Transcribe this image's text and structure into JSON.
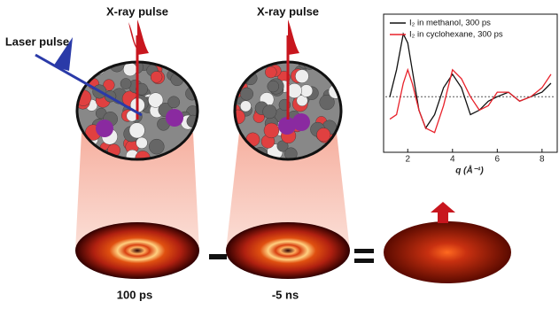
{
  "labels": {
    "xray_left": "X-ray pulse",
    "xray_right": "X-ray pulse",
    "laser": "Laser pulse",
    "time_left": "100 ps",
    "time_right": "-5 ns"
  },
  "chart_data": {
    "type": "line",
    "xlabel": "q (Å⁻¹)",
    "x": [
      1.2,
      1.5,
      1.8,
      2.0,
      2.2,
      2.5,
      2.8,
      3.2,
      3.6,
      4.0,
      4.4,
      4.8,
      5.2,
      5.6,
      6.0,
      6.5,
      7.0,
      7.5,
      8.0,
      8.4
    ],
    "series": [
      {
        "name": "I₂ in methanol, 300 ps",
        "color": "#111111",
        "values": [
          0,
          0.6,
          1.4,
          1.2,
          0.6,
          -0.3,
          -0.7,
          -0.4,
          0.2,
          0.5,
          0.2,
          -0.4,
          -0.3,
          -0.1,
          0,
          0.1,
          -0.1,
          0,
          0.1,
          0.3
        ]
      },
      {
        "name": "I₂ in cyclohexane, 300 ps",
        "color": "#e8212a",
        "values": [
          -0.5,
          -0.4,
          0.3,
          0.6,
          0.3,
          -0.3,
          -0.7,
          -0.8,
          -0.2,
          0.6,
          0.4,
          0,
          -0.3,
          -0.2,
          0.1,
          0.1,
          -0.1,
          0,
          0.2,
          0.5
        ]
      }
    ],
    "xlim": [
      1,
      8.6
    ],
    "xticks": [
      2,
      4,
      6,
      8
    ],
    "ylim": [
      -1.2,
      1.8
    ],
    "hline": 0,
    "legend": "upper left"
  }
}
